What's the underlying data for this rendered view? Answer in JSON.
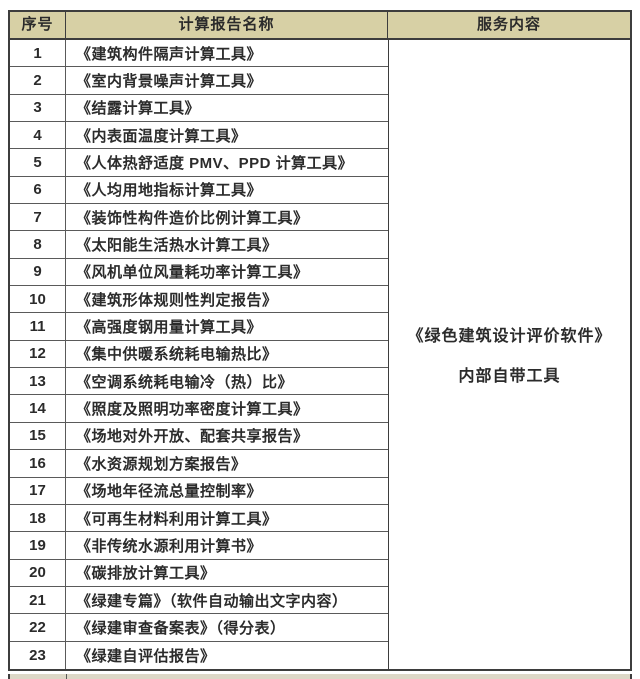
{
  "table": {
    "headers": [
      "序号",
      "计算报告名称",
      "服务内容"
    ]
  },
  "rows": [
    {
      "no": "1",
      "name": "《建筑构件隔声计算工具》"
    },
    {
      "no": "2",
      "name": "《室内背景噪声计算工具》"
    },
    {
      "no": "3",
      "name": "《结露计算工具》"
    },
    {
      "no": "4",
      "name": "《内表面温度计算工具》"
    },
    {
      "no": "5",
      "name": "《人体热舒适度 PMV、PPD 计算工具》"
    },
    {
      "no": "6",
      "name": "《人均用地指标计算工具》"
    },
    {
      "no": "7",
      "name": "《装饰性构件造价比例计算工具》"
    },
    {
      "no": "8",
      "name": "《太阳能生活热水计算工具》"
    },
    {
      "no": "9",
      "name": "《风机单位风量耗功率计算工具》"
    },
    {
      "no": "10",
      "name": "《建筑形体规则性判定报告》"
    },
    {
      "no": "11",
      "name": "《高强度钢用量计算工具》"
    },
    {
      "no": "12",
      "name": "《集中供暖系统耗电输热比》"
    },
    {
      "no": "13",
      "name": "《空调系统耗电输冷（热）比》"
    },
    {
      "no": "14",
      "name": "《照度及照明功率密度计算工具》"
    },
    {
      "no": "15",
      "name": "《场地对外开放、配套共享报告》"
    },
    {
      "no": "16",
      "name": "《水资源规划方案报告》"
    },
    {
      "no": "17",
      "name": "《场地年径流总量控制率》"
    },
    {
      "no": "18",
      "name": "《可再生材料利用计算工具》"
    },
    {
      "no": "19",
      "name": "《非传统水源利用计算书》"
    },
    {
      "no": "20",
      "name": "《碳排放计算工具》"
    },
    {
      "no": "21",
      "name": "《绿建专篇》（软件自动输出文字内容）"
    },
    {
      "no": "22",
      "name": "《绿建审查备案表》（得分表）"
    },
    {
      "no": "23",
      "name": "《绿建自评估报告》"
    }
  ],
  "service": {
    "line1": "《绿色建筑设计评价软件》",
    "line2": "内部自带工具"
  },
  "colors": {
    "header_bg": "#d7d0a5",
    "outer_border": "#3d3d3d",
    "grid_line": "#5a5a5a",
    "text": "#2b2b2b",
    "next_row_bg": "#ddd8c7"
  }
}
